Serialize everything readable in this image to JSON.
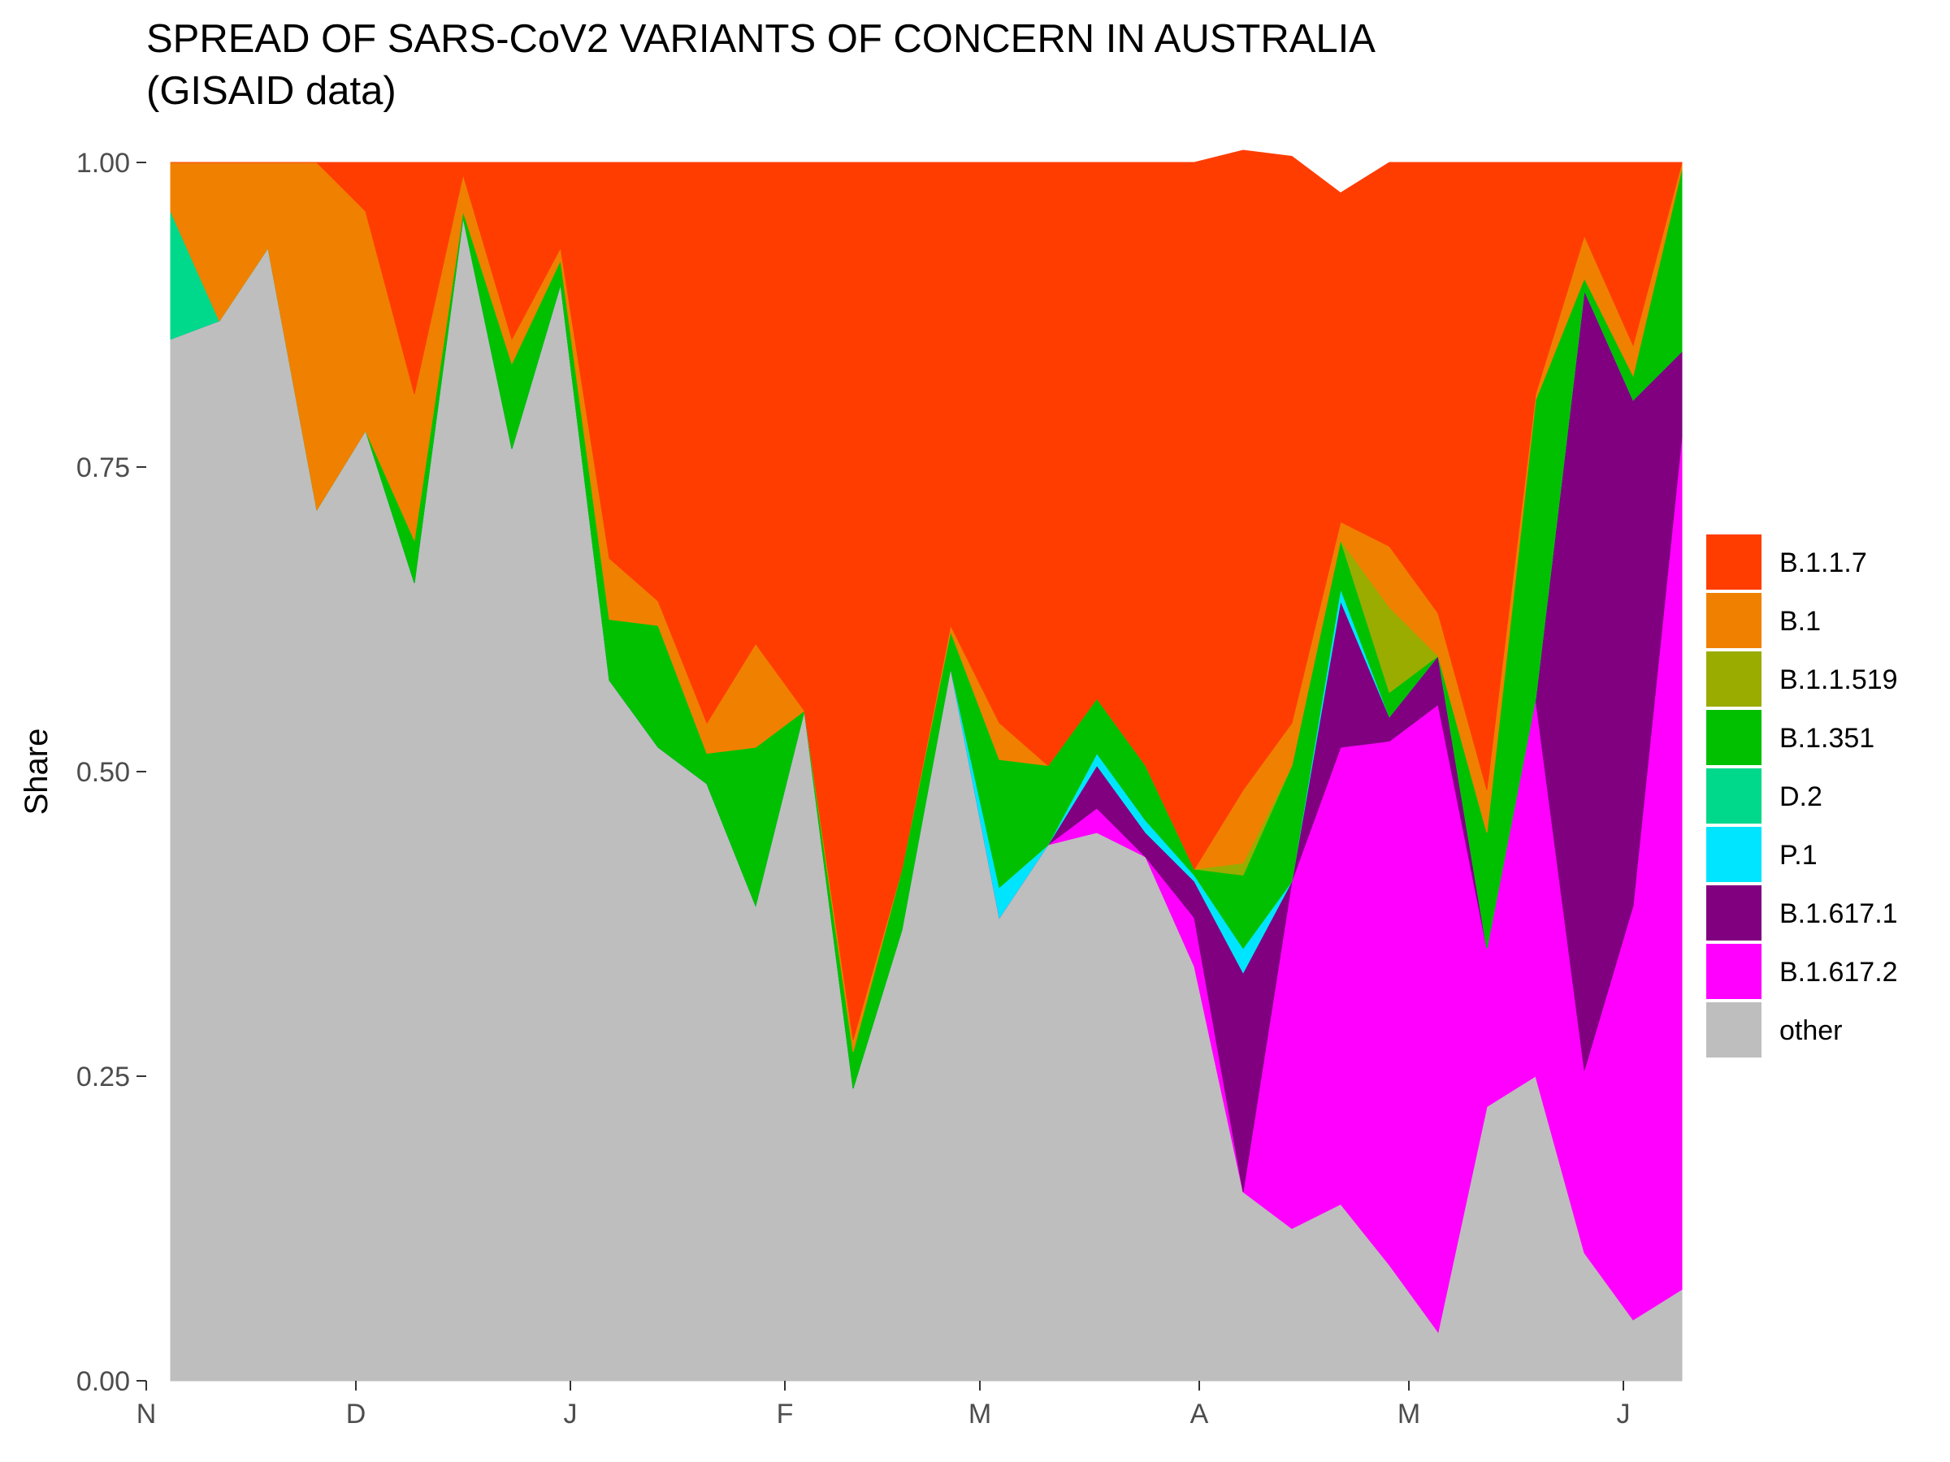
{
  "chart_data": {
    "type": "area",
    "title_lines": [
      "SPREAD OF SARS-CoV2 VARIANTS OF CONCERN IN AUSTRALIA",
      "(GISAID data)"
    ],
    "xlabel": "",
    "ylabel": "Share",
    "ylim": [
      0,
      1
    ],
    "y_ticks": [
      0,
      0.25,
      0.5,
      0.75,
      1
    ],
    "y_tick_labels": [
      "0.00",
      "0.25",
      "0.50",
      "0.75",
      "1.00"
    ],
    "x_range": [
      -0.5,
      30.5
    ],
    "x_tick_positions": [
      -0.5,
      3.8,
      8.2,
      12.6,
      16.6,
      21.1,
      25.4,
      29.8
    ],
    "x_tick_labels": [
      "N",
      "D",
      "J",
      "F",
      "M",
      "A",
      "M",
      "J"
    ],
    "x": [
      0,
      1,
      2,
      3,
      4,
      5,
      6,
      7,
      8,
      9,
      10,
      11,
      12,
      13,
      14,
      15,
      16,
      17,
      18,
      19,
      20,
      21,
      22,
      23,
      24,
      25,
      26,
      27,
      28,
      29,
      30,
      31
    ],
    "legend_position": "right",
    "series": [
      {
        "name": "other",
        "color": "#bebebe",
        "values": [
          0.855,
          0.87,
          0.93,
          0.715,
          0.78,
          0.655,
          0.955,
          0.765,
          0.9,
          0.575,
          0.52,
          0.49,
          0.39,
          0.55,
          0.24,
          0.37,
          0.585,
          0.38,
          0.44,
          0.45,
          0.43,
          0.34,
          0.155,
          0.125,
          0.145,
          0.095,
          0.04,
          0.225,
          0.25,
          0.105,
          0.05,
          0.075
        ]
      },
      {
        "name": "B.1.617.2",
        "color": "#ff00ff",
        "values": [
          0,
          0,
          0,
          0,
          0,
          0,
          0,
          0,
          0,
          0,
          0,
          0,
          0,
          0,
          0,
          0,
          0,
          0,
          0,
          0.02,
          0,
          0.04,
          0,
          0.285,
          0.375,
          0.43,
          0.515,
          0.13,
          0.31,
          0.15,
          0.34,
          0.7
        ]
      },
      {
        "name": "B.1.617.1",
        "color": "#800080",
        "values": [
          0,
          0,
          0,
          0,
          0,
          0,
          0,
          0,
          0,
          0,
          0,
          0,
          0,
          0,
          0,
          0,
          0,
          0,
          0,
          0.035,
          0.02,
          0.03,
          0.18,
          0,
          0.12,
          0.02,
          0.04,
          0,
          0,
          0.64,
          0.415,
          0.07
        ]
      },
      {
        "name": "P.1",
        "color": "#00e5ff",
        "values": [
          0,
          0,
          0,
          0,
          0,
          0,
          0,
          0,
          0,
          0,
          0,
          0,
          0,
          0,
          0,
          0,
          0,
          0.025,
          0,
          0.01,
          0.01,
          0.005,
          0.02,
          0,
          0.01,
          0,
          0,
          0,
          0,
          0,
          0,
          0
        ]
      },
      {
        "name": "D.2",
        "color": "#00d98b",
        "values": [
          0.105,
          0,
          0,
          0,
          0,
          0,
          0,
          0,
          0,
          0,
          0,
          0,
          0,
          0,
          0,
          0,
          0,
          0,
          0,
          0,
          0,
          0,
          0,
          0,
          0,
          0,
          0,
          0,
          0,
          0,
          0,
          0
        ]
      },
      {
        "name": "B.1.351",
        "color": "#00c000",
        "values": [
          0,
          0,
          0,
          0,
          0,
          0.035,
          0.005,
          0.07,
          0.02,
          0.05,
          0.1,
          0.025,
          0.13,
          0,
          0.03,
          0.05,
          0.03,
          0.105,
          0.065,
          0.045,
          0.045,
          0.005,
          0.06,
          0.095,
          0.04,
          0.02,
          0,
          0.095,
          0.245,
          0.01,
          0.02,
          0.15
        ]
      },
      {
        "name": "B.1.1.519",
        "color": "#9aac00",
        "values": [
          0,
          0,
          0,
          0,
          0,
          0,
          0,
          0,
          0,
          0,
          0,
          0,
          0,
          0,
          0,
          0,
          0,
          0,
          0,
          0,
          0,
          0,
          0.01,
          0,
          0,
          0.07,
          0,
          0,
          0,
          0,
          0,
          0
        ]
      },
      {
        "name": "B.1",
        "color": "#f08000",
        "values": [
          0.04,
          0.13,
          0.07,
          0.285,
          0.18,
          0.12,
          0.03,
          0.02,
          0.01,
          0.05,
          0.02,
          0.025,
          0.085,
          0,
          0.01,
          0,
          0.005,
          0.03,
          0,
          0,
          0,
          0,
          0.06,
          0.035,
          0.015,
          0.05,
          0.035,
          0.035,
          0.005,
          0.035,
          0.025,
          0.005
        ]
      },
      {
        "name": "B.1.1.7",
        "color": "#ff3d00",
        "values": [
          0,
          0,
          0,
          0,
          0.04,
          0.19,
          0.01,
          0.145,
          0.07,
          0.325,
          0.36,
          0.46,
          0.395,
          0.45,
          0.72,
          0.58,
          0.38,
          0.46,
          0.495,
          0.44,
          0.495,
          0.58,
          0.525,
          0.465,
          0.27,
          0.315,
          0.37,
          0.515,
          0.19,
          0.06,
          0.15,
          0
        ]
      }
    ],
    "legend_order": [
      "B.1.1.7",
      "B.1",
      "B.1.1.519",
      "B.1.351",
      "D.2",
      "P.1",
      "B.1.617.1",
      "B.1.617.2",
      "other"
    ]
  }
}
